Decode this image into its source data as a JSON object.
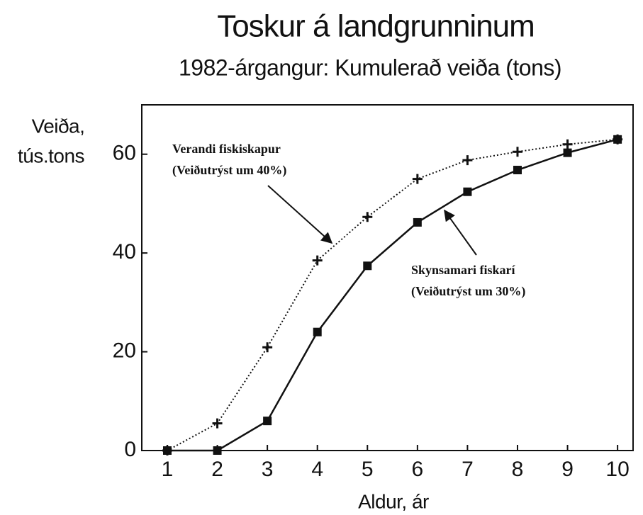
{
  "chart_data": {
    "type": "line",
    "title": "Toskur á landgrunninum",
    "subtitle": "1982-árgangur: Kumulerað veiða (tons)",
    "ylabel": [
      "Veiða,",
      "tús.tons"
    ],
    "xlabel": "Aldur, ár",
    "x": [
      1,
      2,
      3,
      4,
      5,
      6,
      7,
      8,
      9,
      10
    ],
    "xlim": [
      0.49,
      10.31
    ],
    "xticks": [
      1,
      2,
      3,
      4,
      5,
      6,
      7,
      8,
      9,
      10
    ],
    "ylim": [
      0,
      70
    ],
    "yticks": [
      0,
      20,
      40,
      60
    ],
    "grid": false,
    "series": [
      {
        "name": "Verandi fiskiskapur",
        "subname": "(Veiðutrýst um 40%)",
        "color": "#111111",
        "dash": "dotted",
        "marker": "plus",
        "values": [
          0,
          5.5,
          20.9,
          38.5,
          47.3,
          55,
          58.8,
          60.5,
          62,
          63
        ]
      },
      {
        "name": "Skynsamari fiskarí",
        "subname": "(Veiðutrýst um 30%)",
        "color": "#111111",
        "dash": "solid",
        "marker": "square",
        "values": [
          0,
          0,
          6,
          24,
          37.4,
          46.2,
          52.4,
          56.8,
          60.3,
          63
        ]
      }
    ]
  }
}
